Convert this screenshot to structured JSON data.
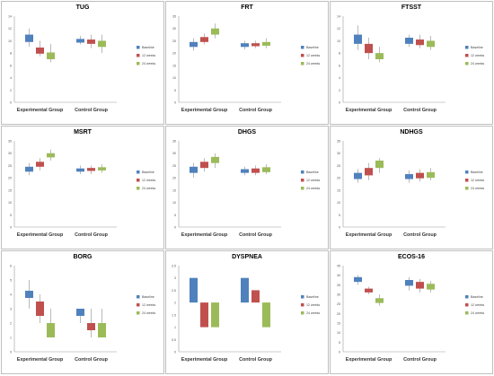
{
  "chart_data": [
    {
      "type": "box",
      "title": "TUG",
      "categories": [
        "Experimental Group",
        "Control Group"
      ],
      "series": [
        {
          "name": "Baseline",
          "color": "#4f81bd",
          "boxes": [
            {
              "min": 9.0,
              "q1": 9.8,
              "q3": 11.0,
              "max": 12.0
            },
            {
              "min": 9.4,
              "q1": 9.7,
              "q3": 10.3,
              "max": 10.8
            }
          ]
        },
        {
          "name": "12 weeks",
          "color": "#c0504d",
          "boxes": [
            {
              "min": 7.5,
              "q1": 7.9,
              "q3": 8.9,
              "max": 10.0
            },
            {
              "min": 8.8,
              "q1": 9.5,
              "q3": 10.2,
              "max": 11.0
            }
          ]
        },
        {
          "name": "24 weeks",
          "color": "#9bbb59",
          "boxes": [
            {
              "min": 6.5,
              "q1": 7.0,
              "q3": 8.1,
              "max": 9.5
            },
            {
              "min": 8.0,
              "q1": 9.0,
              "q3": 10.0,
              "max": 11.0
            }
          ]
        }
      ],
      "ylim": [
        0,
        14
      ],
      "yticks": [
        0,
        2,
        4,
        6,
        8,
        10,
        12,
        14
      ],
      "legend": "right"
    },
    {
      "type": "box",
      "title": "FRT",
      "categories": [
        "Experimental Group",
        "Control Group"
      ],
      "series": [
        {
          "name": "Baseline",
          "color": "#4f81bd",
          "boxes": [
            {
              "min": 21.0,
              "q1": 22.5,
              "q3": 24.5,
              "max": 26.0
            },
            {
              "min": 21.5,
              "q1": 22.5,
              "q3": 24.0,
              "max": 25.0
            }
          ]
        },
        {
          "name": "12 weeks",
          "color": "#c0504d",
          "boxes": [
            {
              "min": 23.5,
              "q1": 24.5,
              "q3": 26.5,
              "max": 28.0
            },
            {
              "min": 22.0,
              "q1": 22.8,
              "q3": 24.0,
              "max": 25.0
            }
          ]
        },
        {
          "name": "24 weeks",
          "color": "#9bbb59",
          "boxes": [
            {
              "min": 26.0,
              "q1": 27.5,
              "q3": 30.0,
              "max": 32.0
            },
            {
              "min": 22.0,
              "q1": 23.0,
              "q3": 24.5,
              "max": 26.0
            }
          ]
        }
      ],
      "ylim": [
        0,
        35
      ],
      "yticks": [
        0,
        5,
        10,
        15,
        20,
        25,
        30,
        35
      ],
      "legend": "right"
    },
    {
      "type": "box",
      "title": "FTSST",
      "categories": [
        "Experimental Group",
        "Control Group"
      ],
      "series": [
        {
          "name": "Baseline",
          "color": "#4f81bd",
          "boxes": [
            {
              "min": 8.5,
              "q1": 9.5,
              "q3": 11.0,
              "max": 12.5
            },
            {
              "min": 9.0,
              "q1": 9.5,
              "q3": 10.5,
              "max": 11.0
            }
          ]
        },
        {
          "name": "12 weeks",
          "color": "#c0504d",
          "boxes": [
            {
              "min": 7.0,
              "q1": 8.0,
              "q3": 9.5,
              "max": 10.5
            },
            {
              "min": 8.8,
              "q1": 9.3,
              "q3": 10.2,
              "max": 11.0
            }
          ]
        },
        {
          "name": "24 weeks",
          "color": "#9bbb59",
          "boxes": [
            {
              "min": 6.5,
              "q1": 7.0,
              "q3": 8.0,
              "max": 9.0
            },
            {
              "min": 8.5,
              "q1": 9.0,
              "q3": 10.0,
              "max": 10.8
            }
          ]
        }
      ],
      "ylim": [
        0,
        14
      ],
      "yticks": [
        0,
        2,
        4,
        6,
        8,
        10,
        12,
        14
      ],
      "legend": "right"
    },
    {
      "type": "box",
      "title": "MSRT",
      "categories": [
        "Experimental Group",
        "Control Group"
      ],
      "series": [
        {
          "name": "Baseline",
          "color": "#4f81bd",
          "boxes": [
            {
              "min": 21.0,
              "q1": 22.5,
              "q3": 24.5,
              "max": 26.0
            },
            {
              "min": 21.5,
              "q1": 22.5,
              "q3": 23.8,
              "max": 25.0
            }
          ]
        },
        {
          "name": "12 weeks",
          "color": "#c0504d",
          "boxes": [
            {
              "min": 23.0,
              "q1": 24.5,
              "q3": 26.5,
              "max": 28.0
            },
            {
              "min": 21.5,
              "q1": 22.8,
              "q3": 24.0,
              "max": 25.0
            }
          ]
        },
        {
          "name": "24 weeks",
          "color": "#9bbb59",
          "boxes": [
            {
              "min": 27.0,
              "q1": 28.3,
              "q3": 30.0,
              "max": 31.5
            },
            {
              "min": 22.0,
              "q1": 23.0,
              "q3": 24.3,
              "max": 25.5
            }
          ]
        }
      ],
      "ylim": [
        0,
        35
      ],
      "yticks": [
        0,
        5,
        10,
        15,
        20,
        25,
        30,
        35
      ],
      "legend": "right"
    },
    {
      "type": "box",
      "title": "DHGS",
      "categories": [
        "Experimental Group",
        "Control Group"
      ],
      "series": [
        {
          "name": "Baseline",
          "color": "#4f81bd",
          "boxes": [
            {
              "min": 20.0,
              "q1": 22.0,
              "q3": 24.5,
              "max": 26.0
            },
            {
              "min": 21.0,
              "q1": 22.0,
              "q3": 23.5,
              "max": 24.5
            }
          ]
        },
        {
          "name": "12 weeks",
          "color": "#c0504d",
          "boxes": [
            {
              "min": 22.5,
              "q1": 24.0,
              "q3": 26.5,
              "max": 28.0
            },
            {
              "min": 21.0,
              "q1": 22.0,
              "q3": 23.8,
              "max": 25.0
            }
          ]
        },
        {
          "name": "24 weeks",
          "color": "#9bbb59",
          "boxes": [
            {
              "min": 24.0,
              "q1": 26.0,
              "q3": 28.5,
              "max": 30.0
            },
            {
              "min": 21.5,
              "q1": 22.3,
              "q3": 24.3,
              "max": 25.5
            }
          ]
        }
      ],
      "ylim": [
        0,
        35
      ],
      "yticks": [
        0,
        5,
        10,
        15,
        20,
        25,
        30,
        35
      ],
      "legend": "right"
    },
    {
      "type": "box",
      "title": "NDHGS",
      "categories": [
        "Experimental Group",
        "Control Group"
      ],
      "series": [
        {
          "name": "Baseline",
          "color": "#4f81bd",
          "boxes": [
            {
              "min": 18.0,
              "q1": 19.5,
              "q3": 22.0,
              "max": 23.5
            },
            {
              "min": 18.0,
              "q1": 19.5,
              "q3": 21.5,
              "max": 23.0
            }
          ]
        },
        {
          "name": "12 weeks",
          "color": "#c0504d",
          "boxes": [
            {
              "min": 19.0,
              "q1": 21.0,
              "q3": 24.0,
              "max": 26.0
            },
            {
              "min": 18.5,
              "q1": 19.8,
              "q3": 22.0,
              "max": 23.5
            }
          ]
        },
        {
          "name": "24 weeks",
          "color": "#9bbb59",
          "boxes": [
            {
              "min": 22.0,
              "q1": 24.0,
              "q3": 27.0,
              "max": 28.0
            },
            {
              "min": 19.0,
              "q1": 20.0,
              "q3": 22.3,
              "max": 24.0
            }
          ]
        }
      ],
      "ylim": [
        0,
        35
      ],
      "yticks": [
        0,
        5,
        10,
        15,
        20,
        25,
        30,
        35
      ],
      "legend": "right"
    },
    {
      "type": "box",
      "title": "BORG",
      "categories": [
        "Experimental Group",
        "Control Group"
      ],
      "series": [
        {
          "name": "Baseline",
          "color": "#4f81bd",
          "boxes": [
            {
              "min": 3.0,
              "q1": 3.75,
              "q3": 4.25,
              "max": 5.0
            },
            {
              "min": 2.0,
              "q1": 2.5,
              "q3": 3.0,
              "max": 3.0
            }
          ]
        },
        {
          "name": "12 weeks",
          "color": "#c0504d",
          "boxes": [
            {
              "min": 2.0,
              "q1": 2.5,
              "q3": 3.5,
              "max": 4.0
            },
            {
              "min": 1.0,
              "q1": 1.5,
              "q3": 2.0,
              "max": 3.0
            }
          ]
        },
        {
          "name": "24 weeks",
          "color": "#9bbb59",
          "boxes": [
            {
              "min": 1.0,
              "q1": 1.0,
              "q3": 2.0,
              "max": 3.0
            },
            {
              "min": 1.0,
              "q1": 1.0,
              "q3": 2.0,
              "max": 3.0
            }
          ]
        }
      ],
      "ylim": [
        0,
        6
      ],
      "yticks": [
        0,
        1,
        2,
        3,
        4,
        5,
        6
      ],
      "legend": "right"
    },
    {
      "type": "box",
      "title": "DYSPNEA",
      "categories": [
        "Experimental Group",
        "Control Group"
      ],
      "series": [
        {
          "name": "Baseline",
          "color": "#4f81bd",
          "boxes": [
            {
              "min": 2.0,
              "q1": 2.0,
              "q3": 3.0,
              "max": 3.0
            },
            {
              "min": 2.0,
              "q1": 2.0,
              "q3": 3.0,
              "max": 3.0
            }
          ]
        },
        {
          "name": "12 weeks",
          "color": "#c0504d",
          "boxes": [
            {
              "min": 1.0,
              "q1": 1.0,
              "q3": 2.0,
              "max": 2.0
            },
            {
              "min": 2.0,
              "q1": 2.0,
              "q3": 2.5,
              "max": 2.5
            }
          ]
        },
        {
          "name": "24 weeks",
          "color": "#9bbb59",
          "boxes": [
            {
              "min": 1.0,
              "q1": 1.0,
              "q3": 2.0,
              "max": 2.0
            },
            {
              "min": 1.0,
              "q1": 1.0,
              "q3": 2.0,
              "max": 2.0
            }
          ]
        }
      ],
      "ylim": [
        0,
        3.5
      ],
      "yticks": [
        0,
        0.5,
        1,
        1.5,
        2,
        2.5,
        3,
        3.5
      ],
      "legend": "right"
    },
    {
      "type": "box",
      "title": "ECOS-16",
      "categories": [
        "Experimental Group",
        "Control Group"
      ],
      "series": [
        {
          "name": "Baseline",
          "color": "#4f81bd",
          "boxes": [
            {
              "min": 35.0,
              "q1": 36.5,
              "q3": 39.0,
              "max": 40.0
            },
            {
              "min": 32.0,
              "q1": 34.5,
              "q3": 37.5,
              "max": 39.0
            }
          ]
        },
        {
          "name": "12 weeks",
          "color": "#c0504d",
          "boxes": [
            {
              "min": 30.0,
              "q1": 31.0,
              "q3": 33.0,
              "max": 34.0
            },
            {
              "min": 31.0,
              "q1": 33.0,
              "q3": 36.5,
              "max": 38.0
            }
          ]
        },
        {
          "name": "24 weeks",
          "color": "#9bbb59",
          "boxes": [
            {
              "min": 24.0,
              "q1": 25.5,
              "q3": 28.0,
              "max": 30.0
            },
            {
              "min": 31.0,
              "q1": 32.5,
              "q3": 35.5,
              "max": 37.0
            }
          ]
        }
      ],
      "ylim": [
        0,
        45
      ],
      "yticks": [
        0,
        5,
        10,
        15,
        20,
        25,
        30,
        35,
        40,
        45
      ],
      "legend": "right"
    }
  ]
}
